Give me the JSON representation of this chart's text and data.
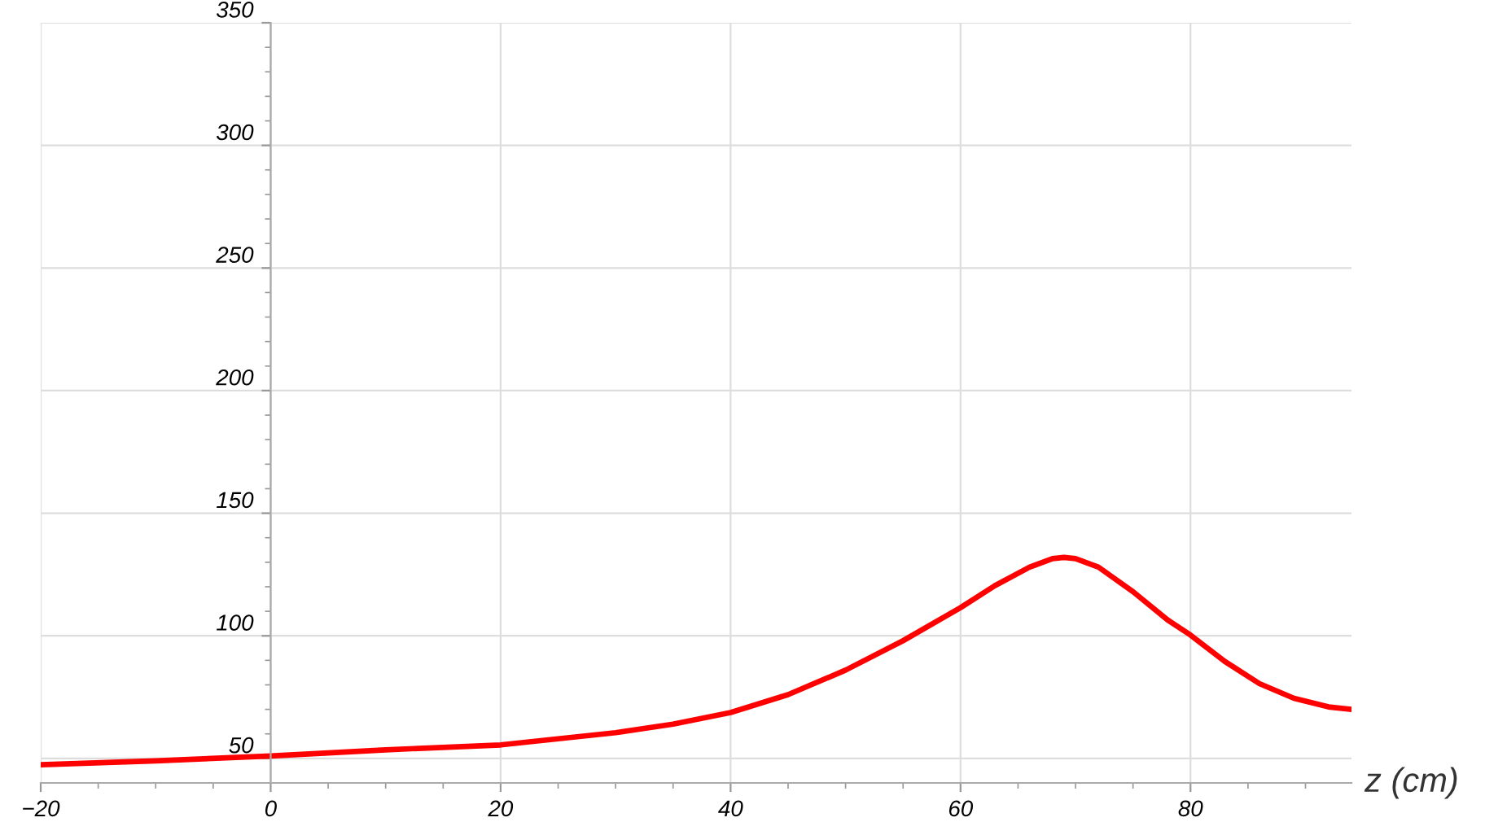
{
  "chart_data": {
    "type": "line",
    "xlabel": "z (cm)",
    "x": [
      -20,
      -10,
      0,
      10,
      20,
      30,
      35,
      40,
      45,
      50,
      55,
      60,
      63,
      66,
      68,
      69,
      70,
      72,
      75,
      78,
      80,
      83,
      86,
      89,
      92,
      94
    ],
    "series": [
      {
        "color": "#ff0000",
        "values": [
          47.4,
          49,
          51,
          53.5,
          55.5,
          60.5,
          64,
          68.7,
          76,
          86,
          98,
          111.5,
          120.5,
          128,
          131.5,
          132,
          131.5,
          128,
          118,
          106.5,
          100.3,
          89.5,
          80.5,
          74.5,
          71,
          70
        ]
      }
    ],
    "xlim": [
      -20,
      94
    ],
    "ylim": [
      40,
      350
    ],
    "xticks": [
      {
        "value": -20,
        "label": "−20"
      },
      0,
      20,
      40,
      60,
      80
    ],
    "yticks": [
      50,
      100,
      150,
      200,
      250,
      300,
      350
    ],
    "grid": true,
    "marker": "none",
    "line_style": "solid"
  }
}
